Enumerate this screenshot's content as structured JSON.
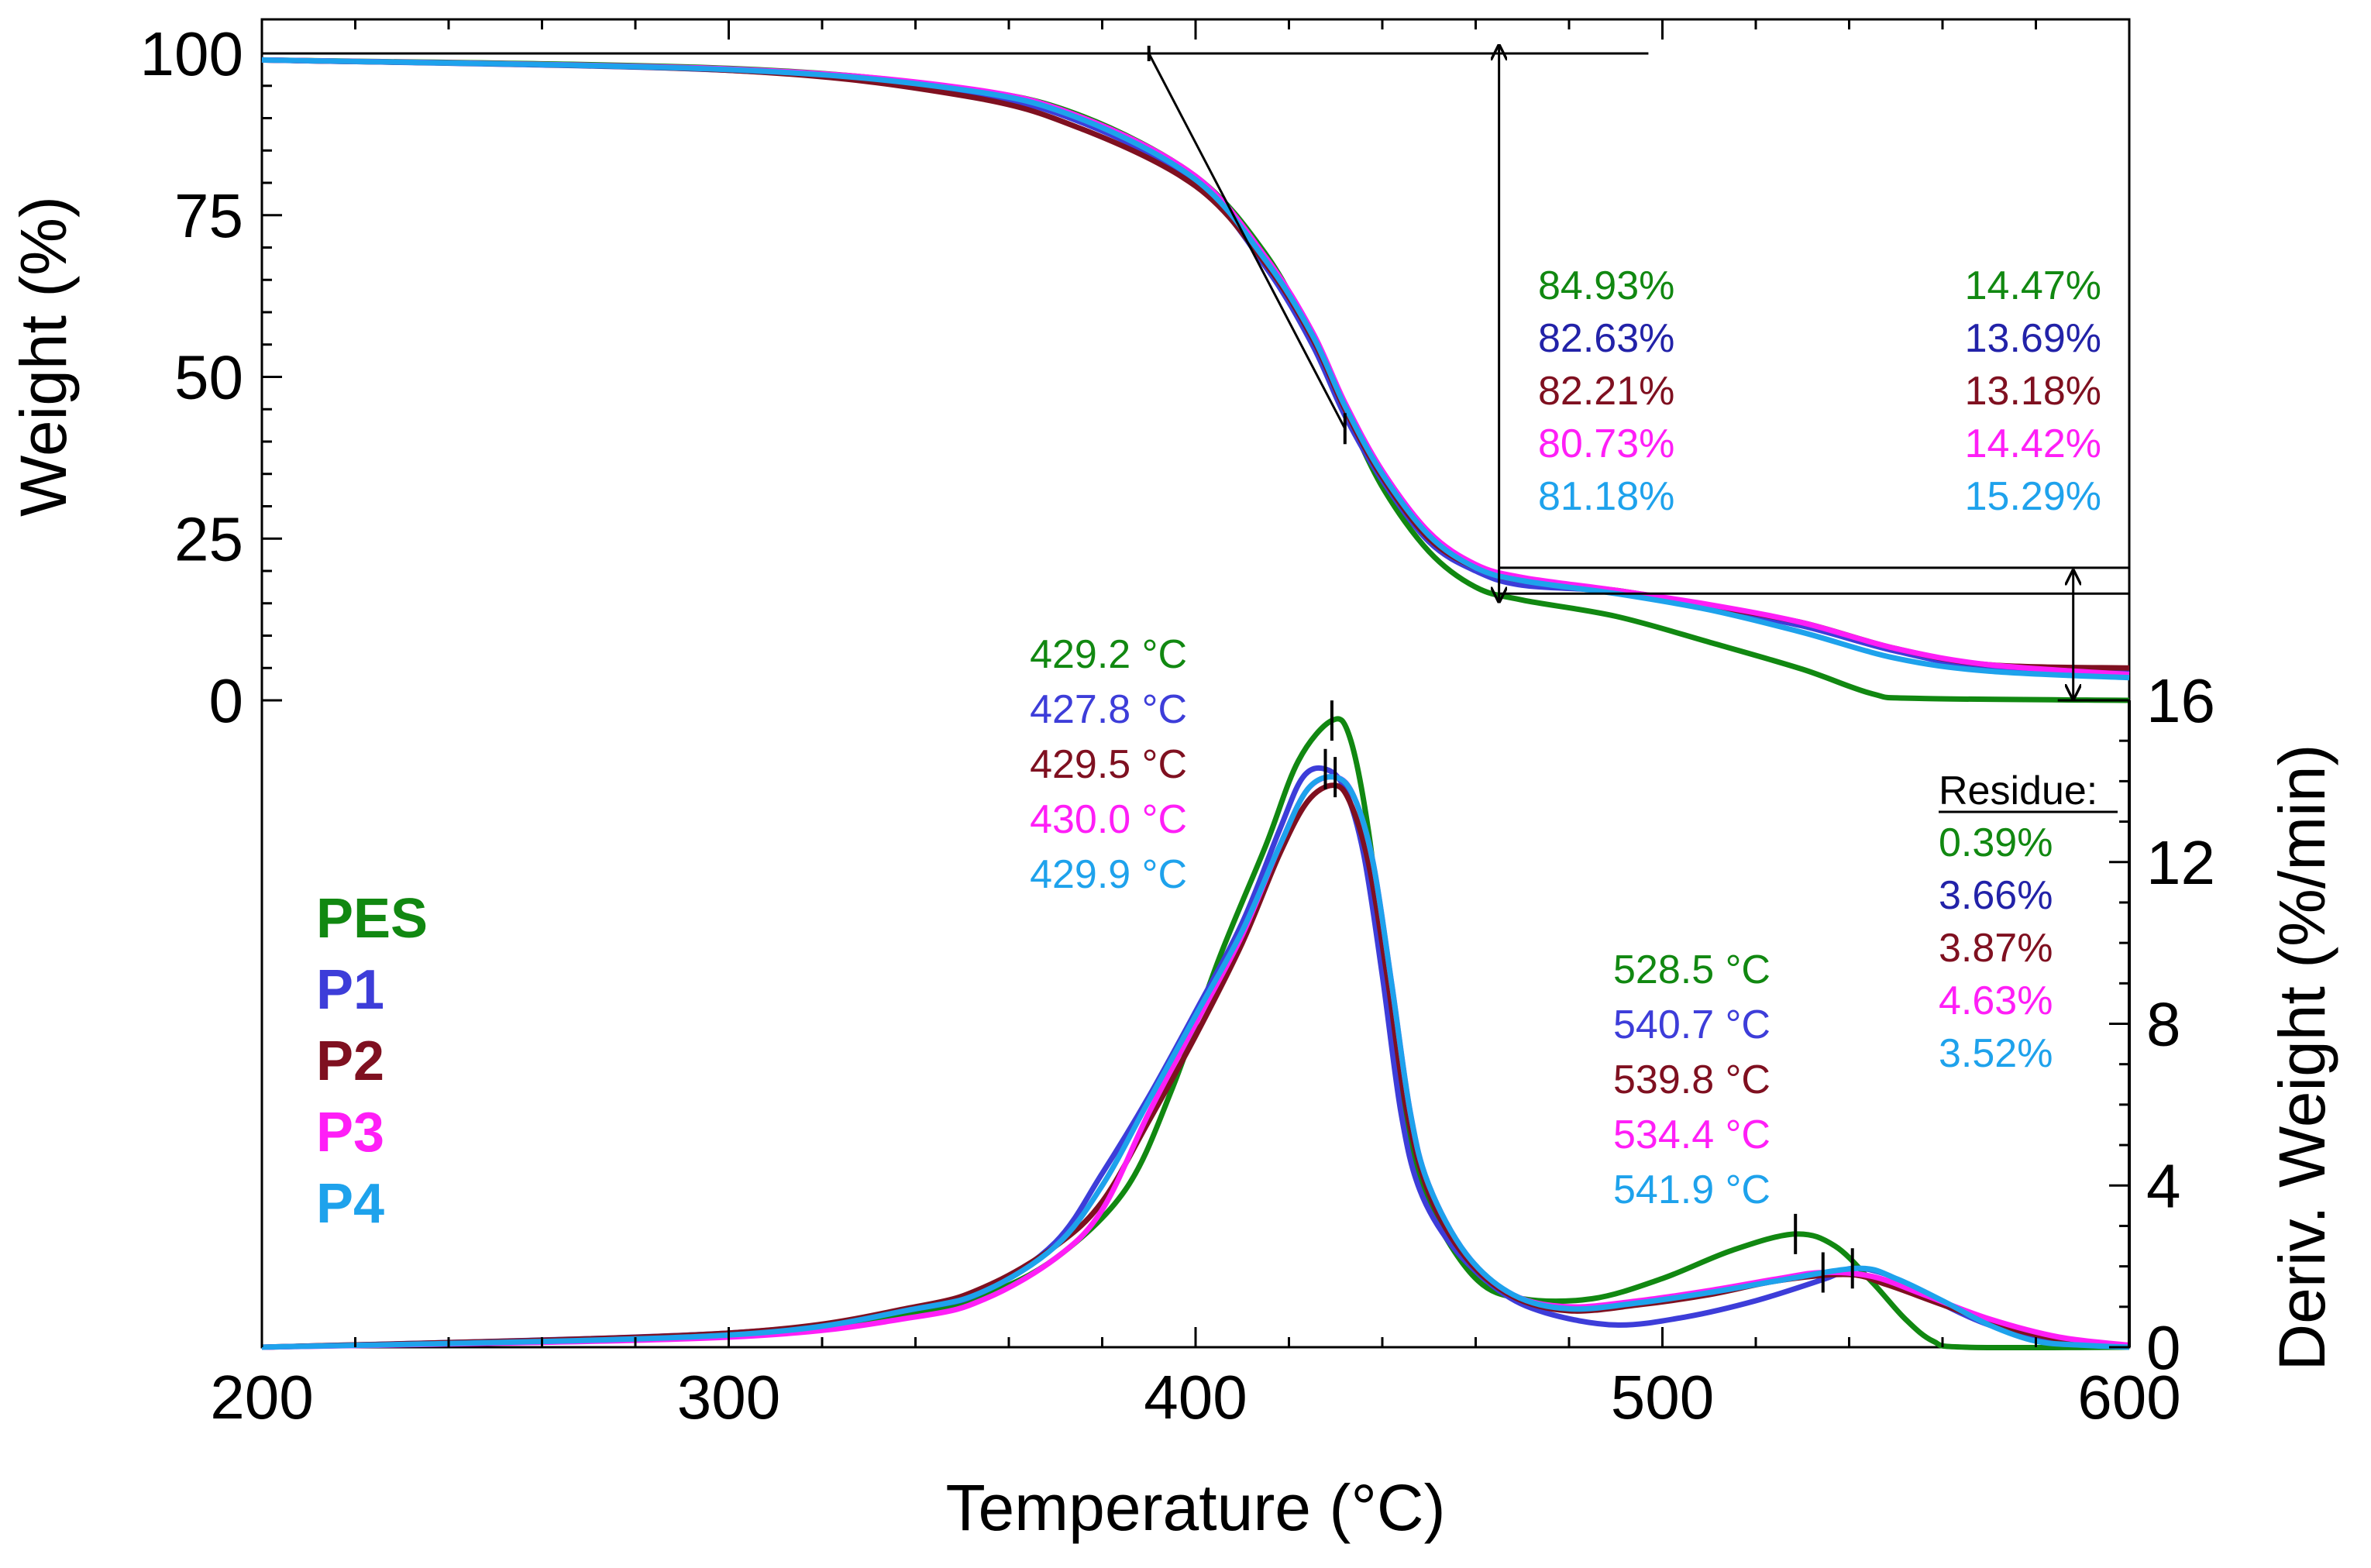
{
  "chart_data": {
    "type": "line",
    "xlabel": "Temperature (°C)",
    "ylabel_left": "Weight (%)",
    "ylabel_right": "Deriv. Weight (%/min)",
    "xlim": [
      200,
      600
    ],
    "xticks": [
      "200",
      "300",
      "400",
      "500",
      "600"
    ],
    "weight_axis": {
      "range": [
        0,
        100
      ],
      "ticks": [
        "0",
        "25",
        "50",
        "75",
        "100"
      ]
    },
    "deriv_axis": {
      "range": [
        0,
        16
      ],
      "ticks": [
        "0",
        "4",
        "8",
        "12",
        "16"
      ]
    },
    "colors": {
      "PES": "#118811",
      "P1": "#3d3dd9",
      "P2": "#7f1020",
      "P3": "#ff1ef7",
      "P4": "#1ea2ec",
      "axis": "#000000"
    },
    "series": [
      {
        "name": "PES",
        "weight": [
          [
            200,
            99
          ],
          [
            300,
            97.7
          ],
          [
            350,
            94.6
          ],
          [
            375,
            90.5
          ],
          [
            400,
            81
          ],
          [
            415,
            69
          ],
          [
            425,
            56
          ],
          [
            432,
            45
          ],
          [
            440,
            33
          ],
          [
            450,
            23
          ],
          [
            460,
            17.5
          ],
          [
            470,
            15.5
          ],
          [
            490,
            13
          ],
          [
            510,
            9
          ],
          [
            530,
            4.8
          ],
          [
            545,
            1
          ],
          [
            555,
            0.3
          ],
          [
            600,
            0
          ]
        ],
        "deriv": [
          [
            200,
            0
          ],
          [
            300,
            0.3
          ],
          [
            340,
            0.85
          ],
          [
            355,
            1.3
          ],
          [
            370,
            2.2
          ],
          [
            385,
            3.9
          ],
          [
            395,
            6.4
          ],
          [
            405,
            9.6
          ],
          [
            415,
            12.4
          ],
          [
            422,
            14.5
          ],
          [
            429.2,
            15.5
          ],
          [
            433,
            15.1
          ],
          [
            437,
            12.8
          ],
          [
            441,
            9
          ],
          [
            445,
            5.5
          ],
          [
            450,
            3.5
          ],
          [
            460,
            1.7
          ],
          [
            470,
            1.2
          ],
          [
            485,
            1.2
          ],
          [
            500,
            1.7
          ],
          [
            515,
            2.4
          ],
          [
            528.5,
            2.8
          ],
          [
            537,
            2.5
          ],
          [
            545,
            1.6
          ],
          [
            552,
            0.7
          ],
          [
            558,
            0.15
          ],
          [
            565,
            0
          ],
          [
            600,
            0
          ]
        ]
      },
      {
        "name": "P1",
        "weight": [
          [
            200,
            99
          ],
          [
            300,
            97.4
          ],
          [
            350,
            94
          ],
          [
            375,
            89.5
          ],
          [
            400,
            80
          ],
          [
            415,
            67
          ],
          [
            425,
            55
          ],
          [
            432,
            44
          ],
          [
            440,
            34
          ],
          [
            450,
            24.5
          ],
          [
            460,
            20
          ],
          [
            470,
            17.8
          ],
          [
            490,
            16.8
          ],
          [
            510,
            14.3
          ],
          [
            530,
            11.5
          ],
          [
            550,
            7.6
          ],
          [
            570,
            5
          ],
          [
            600,
            4.3
          ]
        ],
        "deriv": [
          [
            200,
            0
          ],
          [
            300,
            0.35
          ],
          [
            340,
            0.95
          ],
          [
            355,
            1.4
          ],
          [
            370,
            2.6
          ],
          [
            380,
            4.3
          ],
          [
            390,
            6.2
          ],
          [
            400,
            8.3
          ],
          [
            410,
            10.5
          ],
          [
            418,
            12.8
          ],
          [
            423,
            14.1
          ],
          [
            427.8,
            14.3
          ],
          [
            432,
            13.8
          ],
          [
            436,
            12.2
          ],
          [
            440,
            9.2
          ],
          [
            444,
            5.8
          ],
          [
            448,
            3.9
          ],
          [
            455,
            2.5
          ],
          [
            465,
            1.4
          ],
          [
            475,
            0.85
          ],
          [
            490,
            0.55
          ],
          [
            505,
            0.75
          ],
          [
            520,
            1.15
          ],
          [
            535,
            1.7
          ],
          [
            540.7,
            1.95
          ],
          [
            548,
            1.8
          ],
          [
            556,
            1.3
          ],
          [
            570,
            0.55
          ],
          [
            585,
            0.15
          ],
          [
            600,
            0.05
          ]
        ]
      },
      {
        "name": "P2",
        "weight": [
          [
            200,
            99
          ],
          [
            300,
            97.4
          ],
          [
            350,
            93.5
          ],
          [
            375,
            88.5
          ],
          [
            400,
            79.5
          ],
          [
            415,
            67.5
          ],
          [
            425,
            56
          ],
          [
            432,
            45
          ],
          [
            440,
            34.5
          ],
          [
            450,
            25
          ],
          [
            460,
            20.5
          ],
          [
            470,
            18.5
          ],
          [
            490,
            17
          ],
          [
            510,
            14.6
          ],
          [
            530,
            12
          ],
          [
            550,
            8
          ],
          [
            570,
            5.5
          ],
          [
            600,
            5
          ]
        ],
        "deriv": [
          [
            200,
            0
          ],
          [
            300,
            0.35
          ],
          [
            340,
            1
          ],
          [
            355,
            1.5
          ],
          [
            370,
            2.5
          ],
          [
            380,
            3.6
          ],
          [
            390,
            5.6
          ],
          [
            400,
            7.7
          ],
          [
            410,
            10
          ],
          [
            418,
            12.2
          ],
          [
            424,
            13.5
          ],
          [
            429.5,
            13.9
          ],
          [
            433,
            13.5
          ],
          [
            437,
            12
          ],
          [
            441,
            9.2
          ],
          [
            445,
            6
          ],
          [
            450,
            3.8
          ],
          [
            458,
            2.2
          ],
          [
            468,
            1.25
          ],
          [
            480,
            0.9
          ],
          [
            495,
            1.05
          ],
          [
            510,
            1.3
          ],
          [
            525,
            1.65
          ],
          [
            539.8,
            1.8
          ],
          [
            548,
            1.55
          ],
          [
            560,
            1.05
          ],
          [
            575,
            0.45
          ],
          [
            590,
            0.1
          ],
          [
            600,
            0
          ]
        ]
      },
      {
        "name": "P3",
        "weight": [
          [
            200,
            99
          ],
          [
            300,
            97.6
          ],
          [
            350,
            94.7
          ],
          [
            375,
            90.3
          ],
          [
            400,
            81
          ],
          [
            415,
            68.5
          ],
          [
            425,
            57
          ],
          [
            432,
            46
          ],
          [
            440,
            35.5
          ],
          [
            450,
            26
          ],
          [
            460,
            21
          ],
          [
            470,
            19
          ],
          [
            490,
            17
          ],
          [
            510,
            14.8
          ],
          [
            530,
            12
          ],
          [
            550,
            8
          ],
          [
            570,
            5.5
          ],
          [
            600,
            4
          ]
        ],
        "deriv": [
          [
            200,
            0
          ],
          [
            300,
            0.25
          ],
          [
            340,
            0.75
          ],
          [
            355,
            1.2
          ],
          [
            370,
            2.2
          ],
          [
            380,
            3.4
          ],
          [
            390,
            5.8
          ],
          [
            400,
            8
          ],
          [
            410,
            10.2
          ],
          [
            418,
            12.4
          ],
          [
            424,
            13.8
          ],
          [
            430,
            14.1
          ],
          [
            434,
            13.6
          ],
          [
            438,
            12
          ],
          [
            442,
            9
          ],
          [
            446,
            5.8
          ],
          [
            450,
            4
          ],
          [
            458,
            2.3
          ],
          [
            468,
            1.3
          ],
          [
            480,
            1
          ],
          [
            495,
            1.15
          ],
          [
            510,
            1.4
          ],
          [
            525,
            1.7
          ],
          [
            534.4,
            1.85
          ],
          [
            545,
            1.75
          ],
          [
            556,
            1.3
          ],
          [
            570,
            0.7
          ],
          [
            585,
            0.25
          ],
          [
            600,
            0.05
          ]
        ]
      },
      {
        "name": "P4",
        "weight": [
          [
            200,
            99
          ],
          [
            300,
            97.5
          ],
          [
            350,
            94.4
          ],
          [
            375,
            90
          ],
          [
            400,
            80.5
          ],
          [
            415,
            68
          ],
          [
            425,
            56.5
          ],
          [
            432,
            45.5
          ],
          [
            440,
            35
          ],
          [
            450,
            25.5
          ],
          [
            460,
            20.5
          ],
          [
            470,
            18.5
          ],
          [
            490,
            16.5
          ],
          [
            510,
            14
          ],
          [
            530,
            10.5
          ],
          [
            550,
            6.5
          ],
          [
            570,
            4.5
          ],
          [
            600,
            3.5
          ]
        ],
        "deriv": [
          [
            200,
            0
          ],
          [
            300,
            0.3
          ],
          [
            340,
            0.95
          ],
          [
            355,
            1.4
          ],
          [
            370,
            2.5
          ],
          [
            380,
            4
          ],
          [
            390,
            6.1
          ],
          [
            400,
            8.2
          ],
          [
            410,
            10.3
          ],
          [
            418,
            12.4
          ],
          [
            424,
            13.8
          ],
          [
            429.9,
            14.1
          ],
          [
            434,
            13.6
          ],
          [
            438,
            12
          ],
          [
            442,
            9
          ],
          [
            446,
            5.8
          ],
          [
            450,
            4
          ],
          [
            458,
            2.3
          ],
          [
            468,
            1.3
          ],
          [
            480,
            0.95
          ],
          [
            495,
            1.1
          ],
          [
            510,
            1.35
          ],
          [
            525,
            1.65
          ],
          [
            541.9,
            1.95
          ],
          [
            550,
            1.7
          ],
          [
            560,
            1.15
          ],
          [
            570,
            0.55
          ],
          [
            580,
            0.15
          ],
          [
            590,
            0.05
          ],
          [
            600,
            0
          ]
        ]
      }
    ],
    "legend": [
      {
        "label": "PES",
        "color": "#118811"
      },
      {
        "label": "P1",
        "color": "#3d3dd9"
      },
      {
        "label": "P2",
        "color": "#7f1020"
      },
      {
        "label": "P3",
        "color": "#ff1ef7"
      },
      {
        "label": "P4",
        "color": "#1ea2ec"
      }
    ],
    "annotations": {
      "weight_loss_step1": [
        {
          "text": "84.93%",
          "color": "#118811"
        },
        {
          "text": "82.63%",
          "color": "#2222a8"
        },
        {
          "text": "82.21%",
          "color": "#7f1020"
        },
        {
          "text": "80.73%",
          "color": "#ff1ef7"
        },
        {
          "text": "81.18%",
          "color": "#1ea2ec"
        }
      ],
      "weight_loss_step2": [
        {
          "text": "14.47%",
          "color": "#118811"
        },
        {
          "text": "13.69%",
          "color": "#2222a8"
        },
        {
          "text": "13.18%",
          "color": "#7f1020"
        },
        {
          "text": "14.42%",
          "color": "#ff1ef7"
        },
        {
          "text": "15.29%",
          "color": "#1ea2ec"
        }
      ],
      "peak1_temps": [
        {
          "text": "429.2 °C",
          "color": "#118811"
        },
        {
          "text": "427.8 °C",
          "color": "#3d3dd9"
        },
        {
          "text": "429.5 °C",
          "color": "#7f1020"
        },
        {
          "text": "430.0 °C",
          "color": "#ff1ef7"
        },
        {
          "text": "429.9 °C",
          "color": "#1ea2ec"
        }
      ],
      "peak2_temps": [
        {
          "text": "528.5 °C",
          "color": "#118811"
        },
        {
          "text": "540.7 °C",
          "color": "#3d3dd9"
        },
        {
          "text": "539.8 °C",
          "color": "#7f1020"
        },
        {
          "text": "534.4 °C",
          "color": "#ff1ef7"
        },
        {
          "text": "541.9 °C",
          "color": "#1ea2ec"
        }
      ],
      "residue_title": "Residue:",
      "residue": [
        {
          "text": "0.39%",
          "color": "#118811"
        },
        {
          "text": "3.66%",
          "color": "#2222a8"
        },
        {
          "text": "3.87%",
          "color": "#7f1020"
        },
        {
          "text": "4.63%",
          "color": "#ff1ef7"
        },
        {
          "text": "3.52%",
          "color": "#1ea2ec"
        }
      ],
      "onset_guide": {
        "horizontal_weight": 100,
        "horizontal_x_end": 497,
        "tangent_from": [
          390,
          100
        ],
        "tangent_to": [
          432,
          42
        ]
      },
      "step1_arrow": {
        "x": 465,
        "from_weight": 100,
        "to_weight": 16
      },
      "step2_arrow": {
        "x": 588,
        "from_weight": 20.5,
        "to_weight": 0
      },
      "step_lines": [
        {
          "weight": 20.5,
          "x_start": 465
        },
        {
          "weight": 16.5,
          "x_start": 465
        }
      ],
      "peak_markers": [
        {
          "series": "PES",
          "x": 429.2
        },
        {
          "series": "P1",
          "x": 427.8
        },
        {
          "series": "P4",
          "x": 429.9
        },
        {
          "series": "PES",
          "x": 528.5
        },
        {
          "series": "P1",
          "x": 540.7
        },
        {
          "series": "P3",
          "x": 534.4
        }
      ]
    }
  }
}
